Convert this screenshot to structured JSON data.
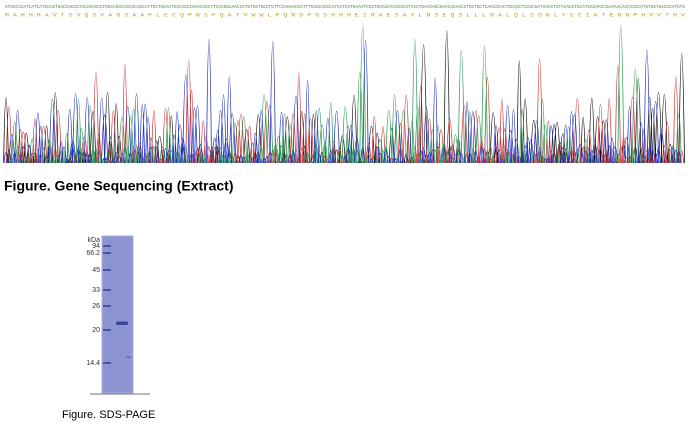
{
  "sequencing": {
    "dna": "ATGGCACATCATCATGCAGTGACCAGCGTGCAGAGCGTGGCAGGCAGCGCAGCATTCCTGGAATGCCAGCCGAACAGCTTCCAGGCAACCGTGTGGTGGCTGTTCCAGAACGATTTCGGCAGCCATCATCATGAAATCCGTGCAGAAAGCGCATACCTGAACAGCGAACAGAGCCTGCTGCTGAACGCACTGCAGCTGAGCGATAACCTGTACAGCTGCATCGCAACCGAAAACAACCCGCATGTGGTGACCCATGTG",
    "protein": "M A H H H A V T S V Q S V A G S A A F L E C Q P N S F Q A T V W W L F Q N D F G S H H H E I R A E S A Y L N S E Q S L L L N A L Q L S D N L Y S C I A T E N N P H V V T H V",
    "caption": "Figure. Gene Sequencing (Extract)"
  },
  "gel": {
    "unit": "kDa",
    "markers": [
      "94",
      "66.2",
      "45",
      "33",
      "26",
      "20",
      "14.4"
    ],
    "caption": "Figure. SDS-PAGE"
  }
}
